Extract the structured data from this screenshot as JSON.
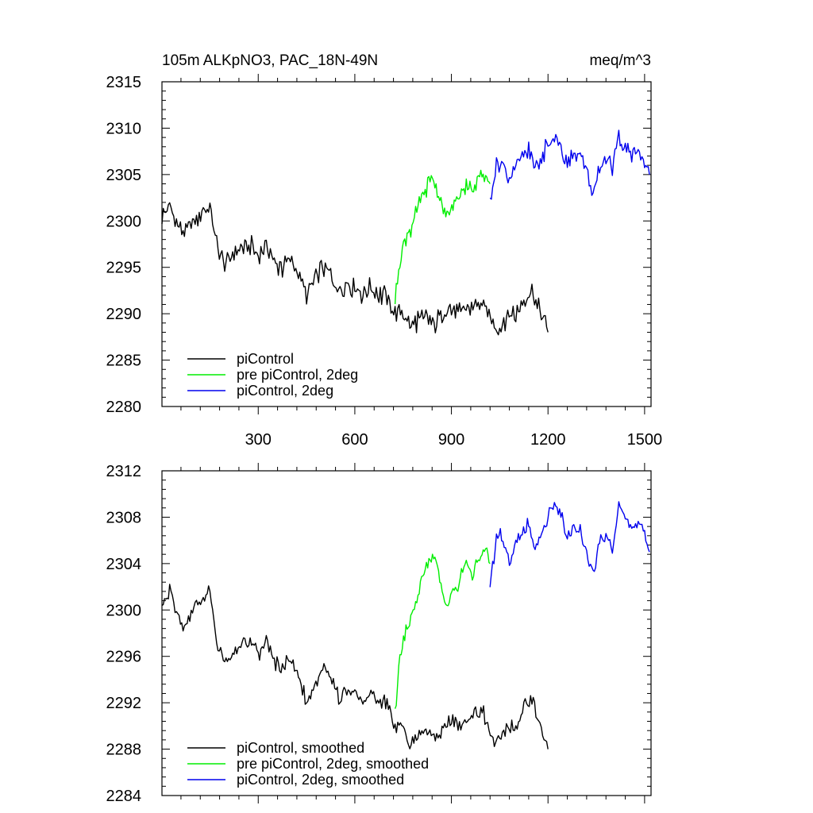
{
  "figure": {
    "title_left": "105m ALKpNO3, PAC_18N-49N",
    "title_right": "meq/m^3"
  },
  "colors": {
    "piControl": "#000000",
    "pre_piControl_2deg": "#00ee00",
    "piControl_2deg": "#0000ee"
  },
  "chart_data": [
    {
      "type": "line",
      "title": "105m ALKpNO3, PAC_18N-49N",
      "units": "meq/m^3",
      "xlabel": "",
      "ylabel": "",
      "xlim": [
        1,
        1520
      ],
      "ylim": [
        2280,
        2315
      ],
      "xticks": [
        300,
        600,
        900,
        1200,
        1500
      ],
      "xtick_labels": [
        "300",
        "600",
        "900",
        "1200",
        "1500"
      ],
      "yticks": [
        2280,
        2285,
        2290,
        2295,
        2300,
        2305,
        2310,
        2315
      ],
      "ytick_labels": [
        "2280",
        "2285",
        "2290",
        "2295",
        "2300",
        "2305",
        "2310",
        "2315"
      ],
      "legend_position": "bottom-left",
      "series": [
        {
          "name": "piControl",
          "color": "#000000",
          "x": [
            1,
            25,
            50,
            75,
            100,
            125,
            150,
            175,
            200,
            225,
            250,
            275,
            300,
            325,
            350,
            375,
            400,
            425,
            450,
            475,
            500,
            525,
            550,
            575,
            600,
            625,
            650,
            675,
            700,
            725,
            750,
            775,
            800,
            825,
            850,
            875,
            900,
            925,
            950,
            975,
            1000,
            1025,
            1050,
            1075,
            1100,
            1125,
            1150,
            1175,
            1200
          ],
          "y": [
            2300.5,
            2301.5,
            2299.5,
            2298.5,
            2300,
            2301,
            2301.5,
            2296.5,
            2295.5,
            2296.5,
            2297,
            2297.5,
            2296,
            2297.5,
            2295.5,
            2295,
            2296,
            2294.5,
            2292,
            2293.5,
            2295,
            2294,
            2292.5,
            2293,
            2293,
            2292,
            2293,
            2292,
            2292,
            2290,
            2290,
            2288.5,
            2289.5,
            2289.5,
            2289,
            2290,
            2290.5,
            2290,
            2290.5,
            2291,
            2291,
            2289,
            2288.5,
            2290,
            2290,
            2291.5,
            2292.5,
            2290,
            2288
          ]
        },
        {
          "name": "pre piControl, 2deg",
          "color": "#00ee00",
          "x": [
            725,
            740,
            755,
            770,
            785,
            800,
            815,
            830,
            845,
            860,
            875,
            890,
            905,
            920,
            935,
            950,
            965,
            980,
            995,
            1010,
            1020
          ],
          "y": [
            2291,
            2296,
            2298,
            2299,
            2300,
            2302,
            2303,
            2304,
            2304.5,
            2303,
            2301,
            2300.5,
            2301.5,
            2302,
            2303.5,
            2304,
            2303,
            2304.5,
            2305,
            2305.5,
            2304
          ]
        },
        {
          "name": "piControl, 2deg",
          "color": "#0000ee",
          "x": [
            1020,
            1040,
            1060,
            1080,
            1100,
            1120,
            1140,
            1160,
            1180,
            1200,
            1220,
            1240,
            1260,
            1280,
            1300,
            1320,
            1340,
            1360,
            1380,
            1400,
            1420,
            1440,
            1460,
            1480,
            1500,
            1515
          ],
          "y": [
            2302,
            2306,
            2306.5,
            2304,
            2306,
            2307,
            2307.5,
            2305.5,
            2307,
            2308,
            2309,
            2308.5,
            2306,
            2307.5,
            2307,
            2305,
            2303,
            2306,
            2306.5,
            2305.5,
            2309,
            2308,
            2307,
            2307.5,
            2306.5,
            2305
          ]
        }
      ]
    },
    {
      "type": "line",
      "title": "",
      "xlabel": "",
      "ylabel": "",
      "xlim": [
        1,
        1520
      ],
      "ylim": [
        2284,
        2312
      ],
      "xticks": [
        300,
        600,
        900,
        1200,
        1500
      ],
      "xtick_labels": [],
      "yticks": [
        2284,
        2288,
        2292,
        2296,
        2300,
        2304,
        2308,
        2312
      ],
      "ytick_labels": [
        "2284",
        "2288",
        "2292",
        "2296",
        "2300",
        "2304",
        "2308",
        "2312"
      ],
      "legend_position": "bottom-left",
      "series": [
        {
          "name": "piControl, smoothed",
          "color": "#000000",
          "x": [
            1,
            25,
            50,
            75,
            100,
            125,
            150,
            175,
            200,
            225,
            250,
            275,
            300,
            325,
            350,
            375,
            400,
            425,
            450,
            475,
            500,
            525,
            550,
            575,
            600,
            625,
            650,
            675,
            700,
            725,
            750,
            775,
            800,
            825,
            850,
            875,
            900,
            925,
            950,
            975,
            1000,
            1025,
            1050,
            1075,
            1100,
            1125,
            1150,
            1175,
            1200
          ],
          "y": [
            2300.5,
            2301.5,
            2299.5,
            2298.5,
            2300,
            2301,
            2301.5,
            2296.5,
            2295.5,
            2296.5,
            2297,
            2297.5,
            2296,
            2297.5,
            2295.5,
            2295,
            2296,
            2294.5,
            2292,
            2293.5,
            2295,
            2294,
            2292.5,
            2293,
            2293,
            2292,
            2293,
            2292,
            2292,
            2290,
            2290,
            2288.5,
            2289.5,
            2289.5,
            2289,
            2290,
            2290.5,
            2290,
            2290.5,
            2291,
            2291,
            2289,
            2288.5,
            2290,
            2290,
            2291.5,
            2292.5,
            2290,
            2288
          ]
        },
        {
          "name": "pre piControl, 2deg, smoothed",
          "color": "#00ee00",
          "x": [
            725,
            740,
            755,
            770,
            785,
            800,
            815,
            830,
            845,
            860,
            875,
            890,
            905,
            920,
            935,
            950,
            965,
            980,
            995,
            1010,
            1020
          ],
          "y": [
            2291,
            2296,
            2298,
            2299,
            2300,
            2302,
            2303,
            2304,
            2304.5,
            2303,
            2301,
            2300.5,
            2301.5,
            2302,
            2303.5,
            2304,
            2303,
            2304.5,
            2305,
            2305.5,
            2304
          ]
        },
        {
          "name": "piControl, 2deg, smoothed",
          "color": "#0000ee",
          "x": [
            1020,
            1040,
            1060,
            1080,
            1100,
            1120,
            1140,
            1160,
            1180,
            1200,
            1220,
            1240,
            1260,
            1280,
            1300,
            1320,
            1340,
            1360,
            1380,
            1400,
            1420,
            1440,
            1460,
            1480,
            1500,
            1515
          ],
          "y": [
            2302,
            2306,
            2306.5,
            2304,
            2306,
            2307,
            2307.5,
            2305.5,
            2307,
            2308,
            2309,
            2308.5,
            2306,
            2307.5,
            2307,
            2305,
            2303,
            2306,
            2306.5,
            2305.5,
            2309,
            2308,
            2307,
            2307.5,
            2306.5,
            2305
          ]
        }
      ]
    }
  ]
}
